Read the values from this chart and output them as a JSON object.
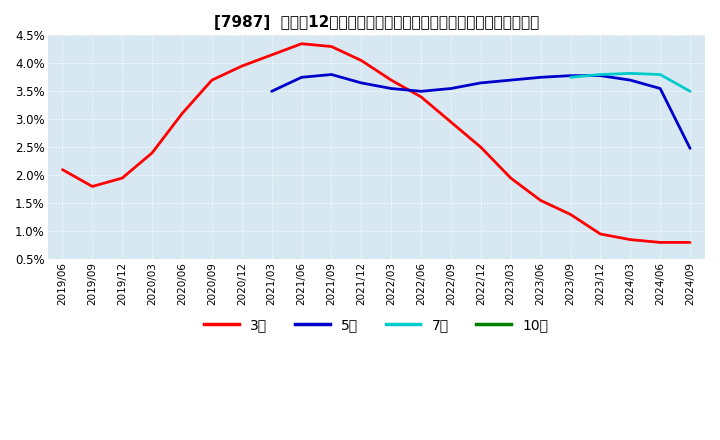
{
  "title": "[7987]  売上高12か月移動合計の対前年同期増減率の標準偏差の推移",
  "title_fontsize": 11,
  "ylim": [
    0.005,
    0.045
  ],
  "yticks": [
    0.005,
    0.01,
    0.015,
    0.02,
    0.025,
    0.03,
    0.035,
    0.04,
    0.045
  ],
  "ytick_labels": [
    "0.5%",
    "1.0%",
    "1.5%",
    "2.0%",
    "2.5%",
    "3.0%",
    "3.5%",
    "4.0%",
    "4.5%"
  ],
  "background_color": "#d8e8f3",
  "grid_color": "#ffffff",
  "legend_labels": [
    "3年",
    "5年",
    "7年",
    "10年"
  ],
  "legend_colors": [
    "#ff0000",
    "#0000cc",
    "#00cccc",
    "#008000"
  ],
  "x_dates": [
    "2019/06",
    "2019/09",
    "2019/12",
    "2020/03",
    "2020/06",
    "2020/09",
    "2020/12",
    "2021/03",
    "2021/06",
    "2021/09",
    "2021/12",
    "2022/03",
    "2022/06",
    "2022/09",
    "2022/12",
    "2023/03",
    "2023/06",
    "2023/09",
    "2023/12",
    "2024/03",
    "2024/06",
    "2024/09"
  ],
  "series_3y": [
    0.021,
    0.018,
    0.0195,
    0.024,
    0.031,
    0.037,
    0.0395,
    0.0415,
    0.0435,
    0.043,
    0.0405,
    0.037,
    0.034,
    0.0295,
    0.025,
    0.0195,
    0.0155,
    0.013,
    0.0095,
    0.0085,
    0.008,
    0.008
  ],
  "series_5y": [
    null,
    null,
    null,
    null,
    null,
    null,
    null,
    0.035,
    0.0375,
    0.038,
    0.0365,
    0.0355,
    0.035,
    0.0355,
    0.0365,
    0.037,
    0.0375,
    0.0378,
    0.0378,
    0.037,
    0.0355,
    0.0248
  ],
  "series_7y": [
    null,
    null,
    null,
    null,
    null,
    null,
    null,
    null,
    null,
    null,
    null,
    null,
    null,
    null,
    null,
    null,
    null,
    0.0375,
    0.038,
    0.0382,
    0.038,
    0.035
  ],
  "series_10y": [
    null,
    null,
    null,
    null,
    null,
    null,
    null,
    null,
    null,
    null,
    null,
    null,
    null,
    null,
    null,
    null,
    null,
    null,
    null,
    null,
    null,
    null
  ]
}
